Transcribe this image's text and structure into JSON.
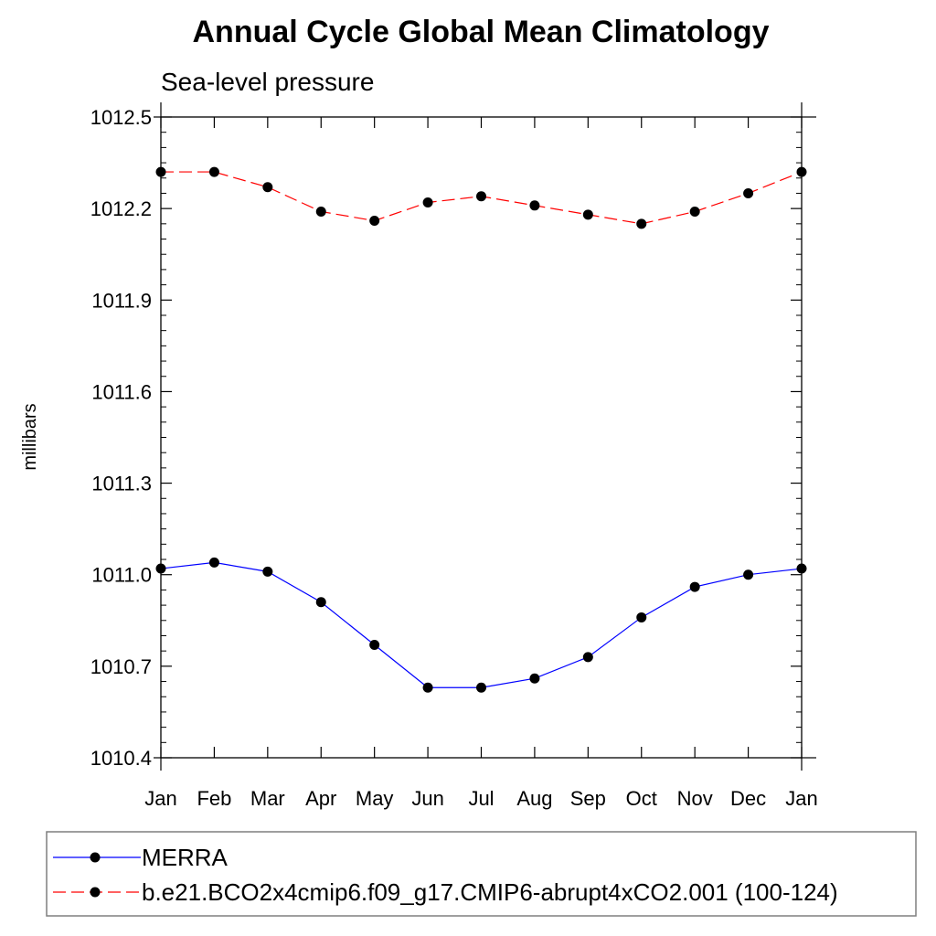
{
  "chart_data": {
    "type": "line",
    "title": "Annual Cycle Global Mean Climatology",
    "subtitle": "Sea-level pressure",
    "xlabel": "",
    "ylabel": "millibars",
    "ylim": [
      1010.4,
      1012.5
    ],
    "yticks": [
      "1010.4",
      "1010.7",
      "1011.0",
      "1011.3",
      "1011.6",
      "1011.9",
      "1012.2",
      "1012.5"
    ],
    "categories": [
      "Jan",
      "Feb",
      "Mar",
      "Apr",
      "May",
      "Jun",
      "Jul",
      "Aug",
      "Sep",
      "Oct",
      "Nov",
      "Dec",
      "Jan"
    ],
    "series": [
      {
        "name": "MERRA",
        "color": "#0000ff",
        "dash": "solid",
        "values": [
          1011.02,
          1011.04,
          1011.01,
          1010.91,
          1010.77,
          1010.63,
          1010.63,
          1010.66,
          1010.73,
          1010.86,
          1010.96,
          1011.0,
          1011.02
        ]
      },
      {
        "name": "b.e21.BCO2x4cmip6.f09_g17.CMIP6-abrupt4xCO2.001 (100-124)",
        "color": "#ff0000",
        "dash": "dashed",
        "values": [
          1012.32,
          1012.32,
          1012.27,
          1012.19,
          1012.16,
          1012.22,
          1012.24,
          1012.21,
          1012.18,
          1012.15,
          1012.19,
          1012.25,
          1012.32
        ]
      }
    ],
    "legend": "bottom"
  }
}
